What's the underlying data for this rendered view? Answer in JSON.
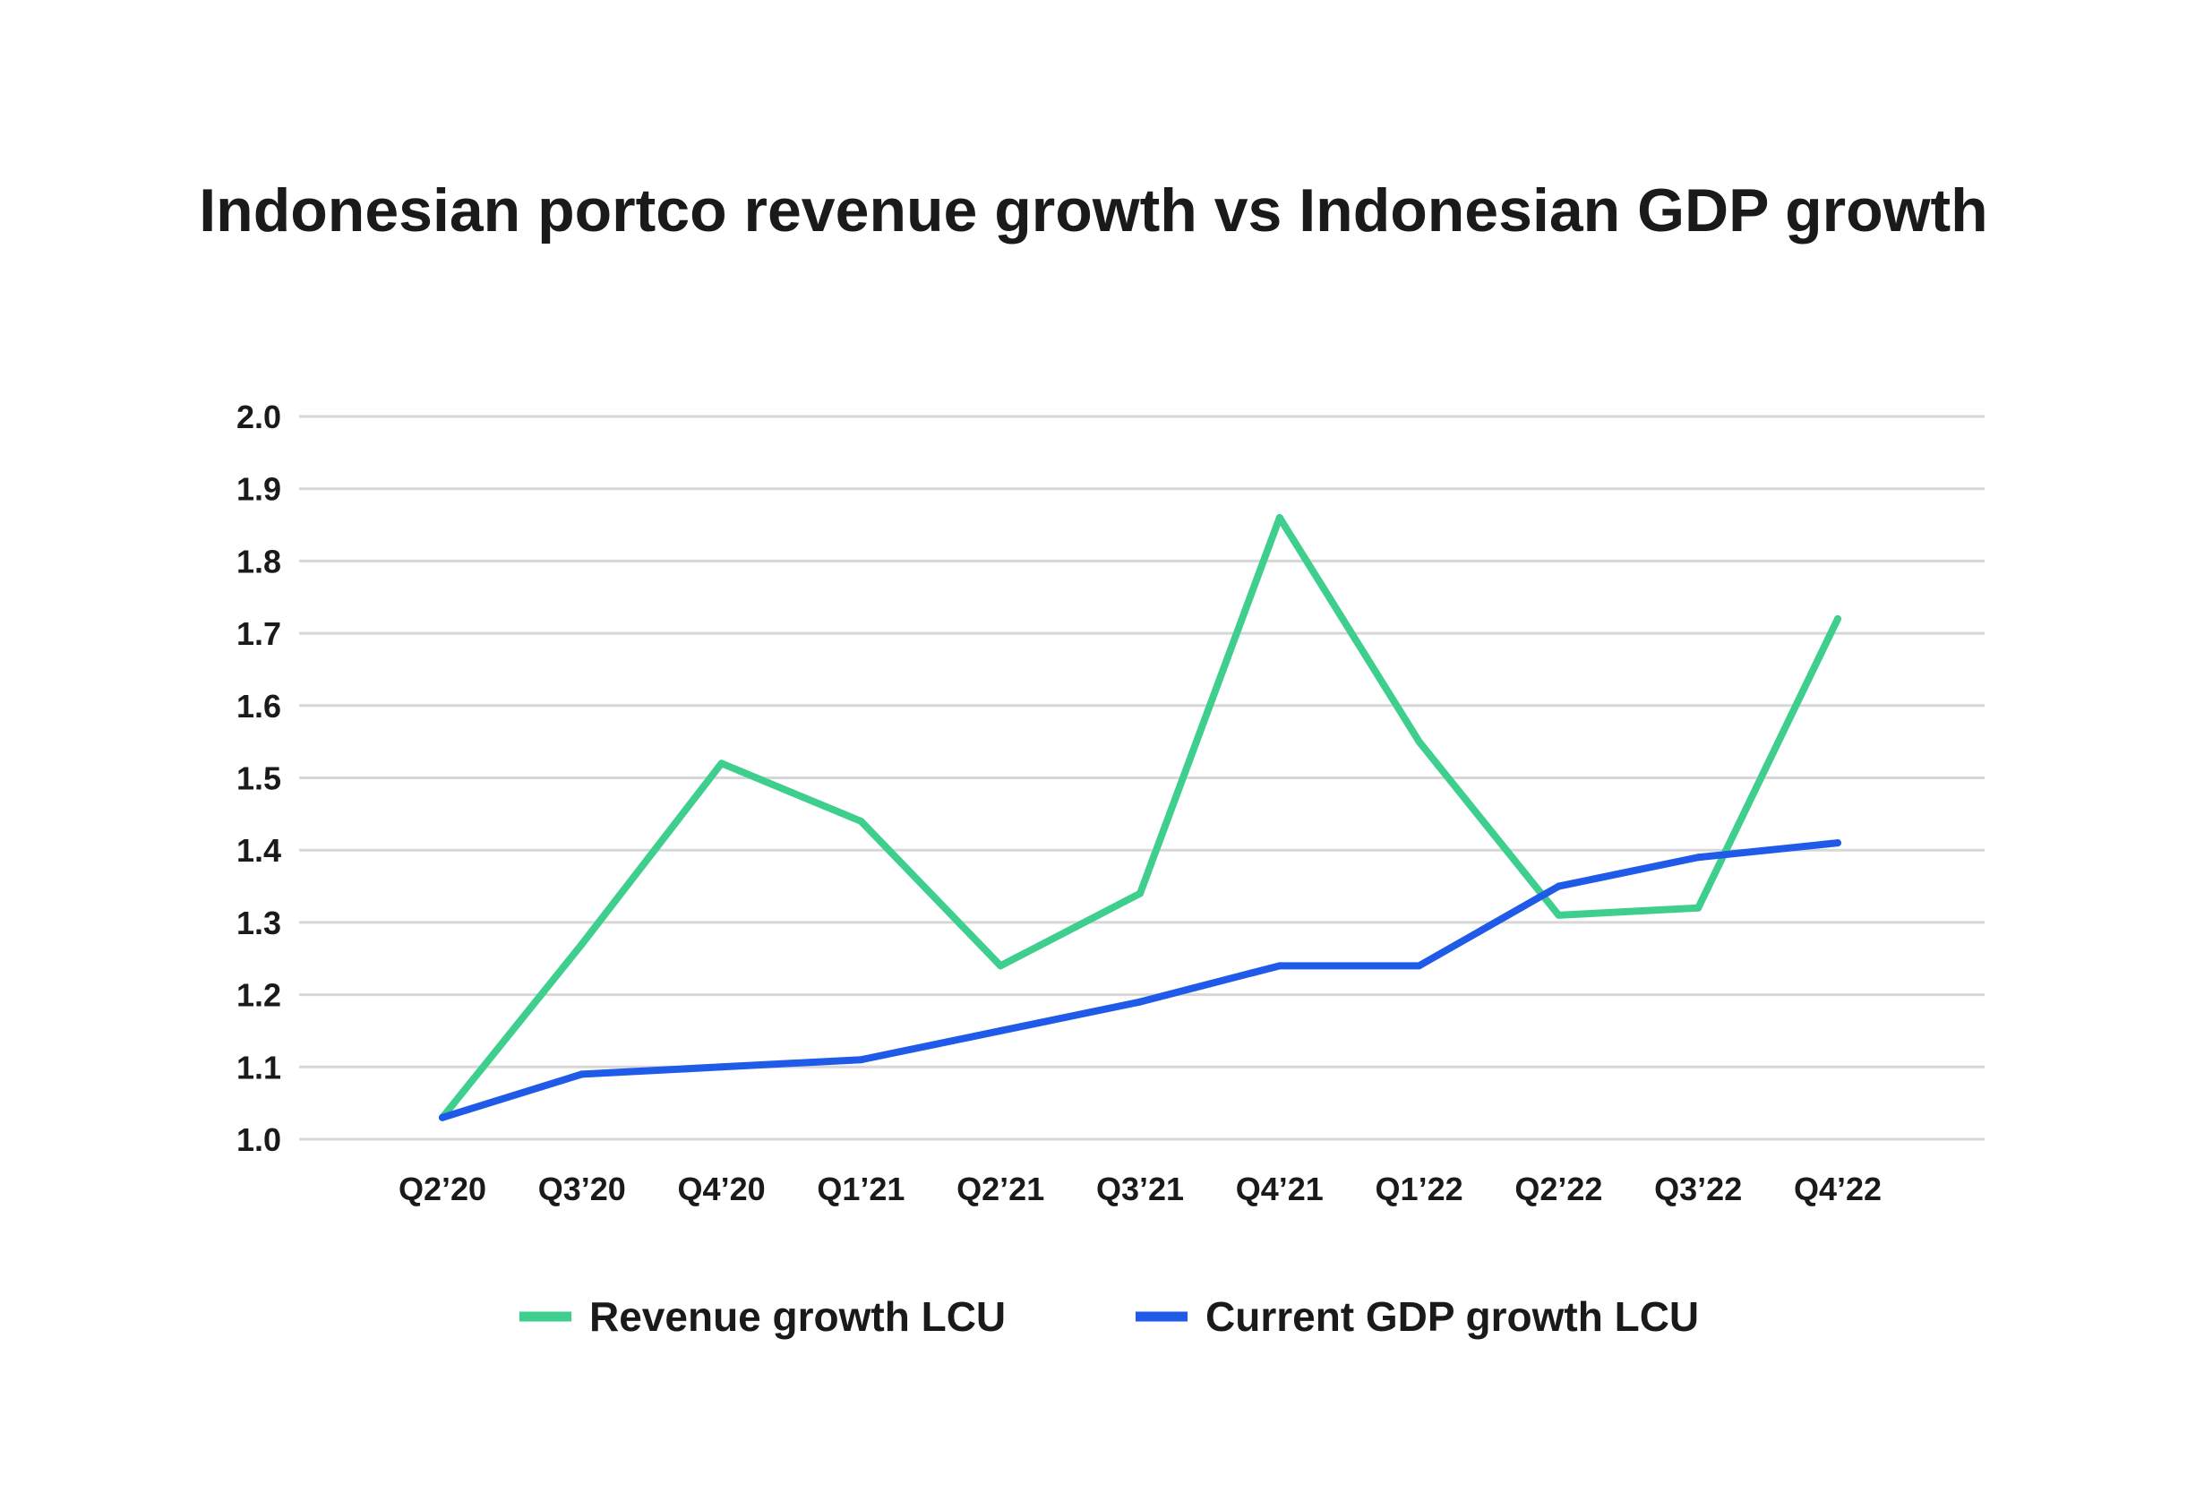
{
  "chart_data": {
    "type": "line",
    "title": "Indonesian portco revenue growth vs Indonesian GDP growth",
    "xlabel": "",
    "ylabel": "",
    "categories": [
      "Q2’20",
      "Q3’20",
      "Q4’20",
      "Q1’21",
      "Q2’21",
      "Q3’21",
      "Q4’21",
      "Q1’22",
      "Q2’22",
      "Q3’22",
      "Q4’22"
    ],
    "y_ticks": [
      "1.0",
      "1.1",
      "1.2",
      "1.3",
      "1.4",
      "1.5",
      "1.6",
      "1.7",
      "1.8",
      "1.9",
      "2.0"
    ],
    "ylim": [
      1.0,
      2.0
    ],
    "grid": true,
    "legend_position": "bottom",
    "series": [
      {
        "name": "Revenue growth LCU",
        "color": "#3ecf8e",
        "values": [
          1.03,
          1.27,
          1.52,
          1.44,
          1.24,
          1.34,
          1.86,
          1.55,
          1.31,
          1.32,
          1.72
        ]
      },
      {
        "name": "Current GDP growth LCU",
        "color": "#1f5ae8",
        "values": [
          1.03,
          1.09,
          1.1,
          1.11,
          1.15,
          1.19,
          1.24,
          1.24,
          1.35,
          1.39,
          1.41
        ]
      }
    ]
  }
}
